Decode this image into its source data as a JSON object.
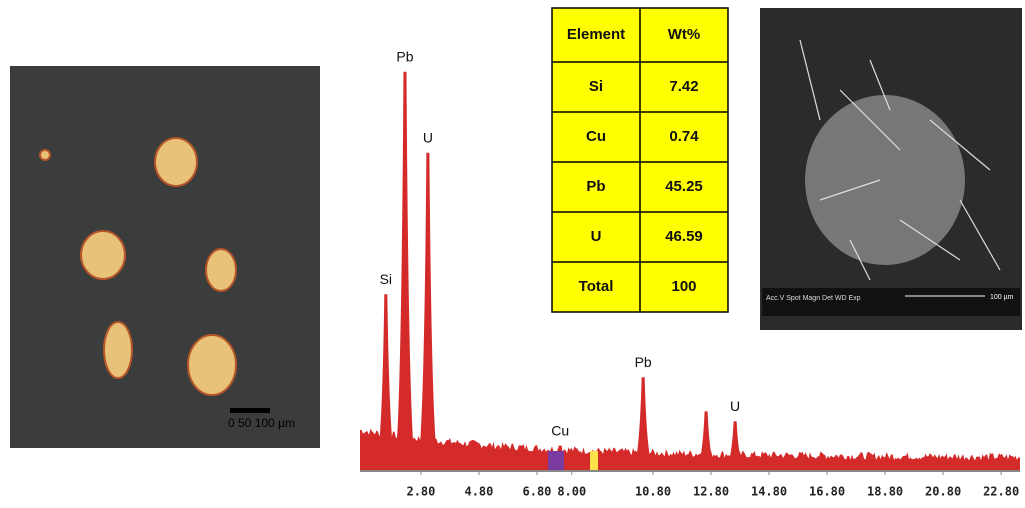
{
  "micrograph": {
    "scale_label": "0  50  100 µm"
  },
  "sem": {
    "scale_label": "100 µm",
    "info": "Acc.V  Spot Magn   Det  WD  Exp"
  },
  "table": {
    "header": [
      "Element",
      "Wt%"
    ],
    "rows": [
      [
        "Si",
        "7.42"
      ],
      [
        "Cu",
        "0.74"
      ],
      [
        "Pb",
        "45.25"
      ],
      [
        "U",
        "46.59"
      ],
      [
        "Total",
        "100"
      ]
    ]
  },
  "chart_data": {
    "type": "spectrum",
    "xlim": [
      0.7,
      23.45
    ],
    "ylim": [
      0,
      420
    ],
    "xticks": [
      {
        "value": 2.8,
        "label": "2.80"
      },
      {
        "value": 4.8,
        "label": "4.80"
      },
      {
        "value": 6.8,
        "label": "6.80"
      },
      {
        "value": 8,
        "label": "8.00"
      },
      {
        "value": 10.8,
        "label": "10.80"
      },
      {
        "value": 12.8,
        "label": "12.80"
      },
      {
        "value": 14.8,
        "label": "14.80"
      },
      {
        "value": 16.8,
        "label": "16.80"
      },
      {
        "value": 18.8,
        "label": "18.80"
      },
      {
        "value": 20.8,
        "label": "20.80"
      },
      {
        "value": 22.8,
        "label": "22.80"
      }
    ],
    "color": "#d42a2a",
    "peaks": {
      "labels": [
        "Si",
        "Pb",
        "U",
        "Cu",
        "Pb",
        null,
        "U"
      ],
      "x": [
        1.59,
        2.25,
        3.04,
        7.6,
        10.46,
        12.63,
        13.63
      ],
      "values": [
        180,
        408,
        325,
        25,
        95,
        60,
        50
      ]
    }
  }
}
